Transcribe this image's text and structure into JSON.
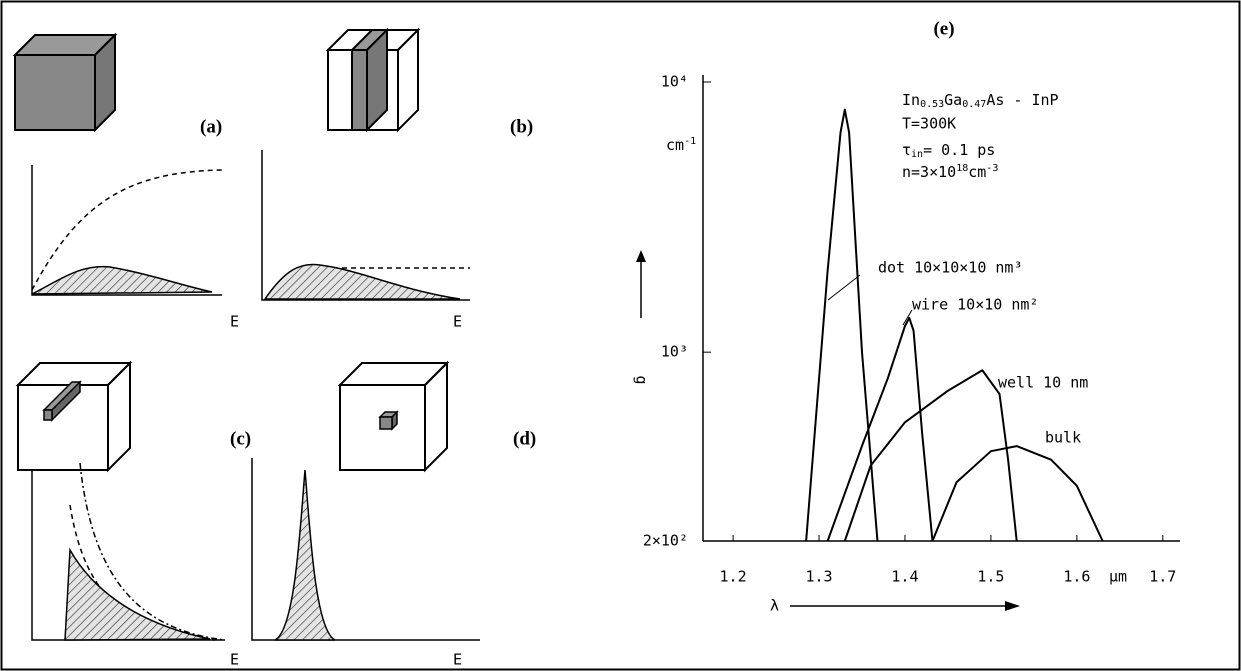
{
  "panels": [
    {
      "label": "(a)",
      "axis_label": "E"
    },
    {
      "label": "(b)",
      "axis_label": "E"
    },
    {
      "label": "(c)",
      "axis_label": "E"
    },
    {
      "label": "(d)",
      "axis_label": "E"
    }
  ],
  "chart_data": {
    "type": "line",
    "title": "(e)",
    "x_label": "λ",
    "x_unit": "μm",
    "y_label": "g",
    "y_unit": [
      "cm",
      "-1"
    ],
    "annotation": {
      "material": [
        "In",
        "0.53",
        "Ga",
        "0.47",
        "As - InP"
      ],
      "temperature": "T=300K",
      "tau": [
        "τ",
        "in",
        "= 0.1 ps"
      ],
      "density": [
        "n=3×10",
        "18",
        "cm",
        "-3"
      ]
    },
    "xlim": [
      1.165,
      1.72
    ],
    "xticks": [
      1.2,
      1.3,
      1.4,
      1.5,
      1.6,
      1.7
    ],
    "ylim": [
      200,
      10000
    ],
    "y_log": true,
    "yticks": [
      {
        "value": 200,
        "label": "2×10²"
      },
      {
        "value": 1000,
        "label": "10³"
      },
      {
        "value": 10000,
        "label": "10⁴"
      }
    ],
    "series": [
      {
        "name": "dot  10×10×10 nm³",
        "color": "#000",
        "x": [
          1.285,
          1.31,
          1.325,
          1.33,
          1.335,
          1.35,
          1.368
        ],
        "values": [
          200,
          2000,
          6500,
          7900,
          6500,
          1000,
          200
        ]
      },
      {
        "name": "wire  10×10 nm²",
        "color": "#000",
        "x": [
          1.31,
          1.35,
          1.38,
          1.4,
          1.405,
          1.41,
          1.42,
          1.432
        ],
        "values": [
          200,
          450,
          800,
          1250,
          1340,
          1200,
          500,
          200
        ]
      },
      {
        "name": "well  10 nm",
        "color": "#000",
        "x": [
          1.33,
          1.36,
          1.4,
          1.45,
          1.49,
          1.51,
          1.52,
          1.53
        ],
        "values": [
          200,
          380,
          550,
          720,
          857,
          700,
          400,
          200
        ]
      },
      {
        "name": "bulk",
        "color": "#000",
        "x": [
          1.432,
          1.46,
          1.5,
          1.53,
          1.57,
          1.6,
          1.63
        ],
        "values": [
          200,
          330,
          430,
          449,
          400,
          320,
          200
        ]
      }
    ]
  }
}
